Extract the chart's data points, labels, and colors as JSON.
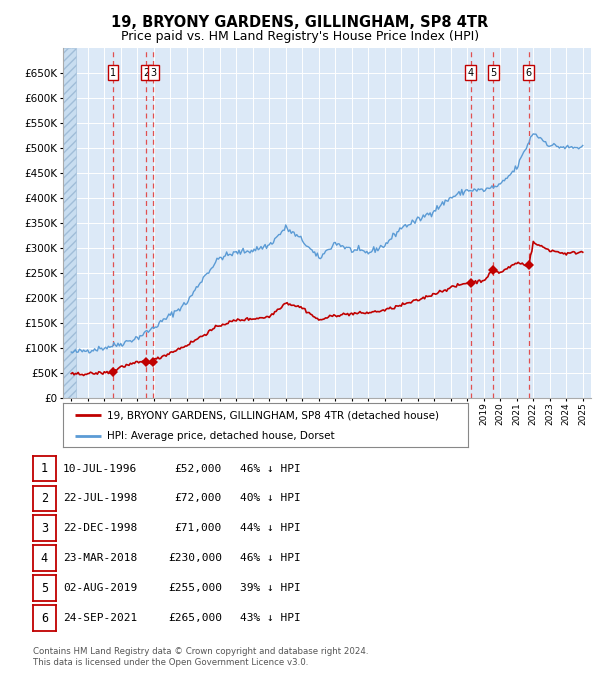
{
  "title": "19, BRYONY GARDENS, GILLINGHAM, SP8 4TR",
  "subtitle": "Price paid vs. HM Land Registry's House Price Index (HPI)",
  "title_fontsize": 10.5,
  "subtitle_fontsize": 9,
  "plot_bg_color": "#dce9f7",
  "ylim": [
    0,
    700000
  ],
  "yticks": [
    0,
    50000,
    100000,
    150000,
    200000,
    250000,
    300000,
    350000,
    400000,
    450000,
    500000,
    550000,
    600000,
    650000
  ],
  "year_start": 1994,
  "year_end": 2025,
  "hpi_color": "#5b9bd5",
  "price_color": "#c00000",
  "dashed_line_color": "#e05050",
  "marker_color": "#c00000",
  "sale_dates_x": [
    1996.53,
    1998.55,
    1998.97,
    2018.22,
    2019.58,
    2021.73
  ],
  "sale_prices_y": [
    52000,
    72000,
    71000,
    230000,
    255000,
    265000
  ],
  "sale_labels": [
    "1",
    "2",
    "3",
    "4",
    "5",
    "6"
  ],
  "table_rows": [
    [
      "1",
      "10-JUL-1996",
      "£52,000",
      "46% ↓ HPI"
    ],
    [
      "2",
      "22-JUL-1998",
      "£72,000",
      "40% ↓ HPI"
    ],
    [
      "3",
      "22-DEC-1998",
      "£71,000",
      "44% ↓ HPI"
    ],
    [
      "4",
      "23-MAR-2018",
      "£230,000",
      "46% ↓ HPI"
    ],
    [
      "5",
      "02-AUG-2019",
      "£255,000",
      "39% ↓ HPI"
    ],
    [
      "6",
      "24-SEP-2021",
      "£265,000",
      "43% ↓ HPI"
    ]
  ],
  "footer": "Contains HM Land Registry data © Crown copyright and database right 2024.\nThis data is licensed under the Open Government Licence v3.0.",
  "legend_label_red": "19, BRYONY GARDENS, GILLINGHAM, SP8 4TR (detached house)",
  "legend_label_blue": "HPI: Average price, detached house, Dorset"
}
